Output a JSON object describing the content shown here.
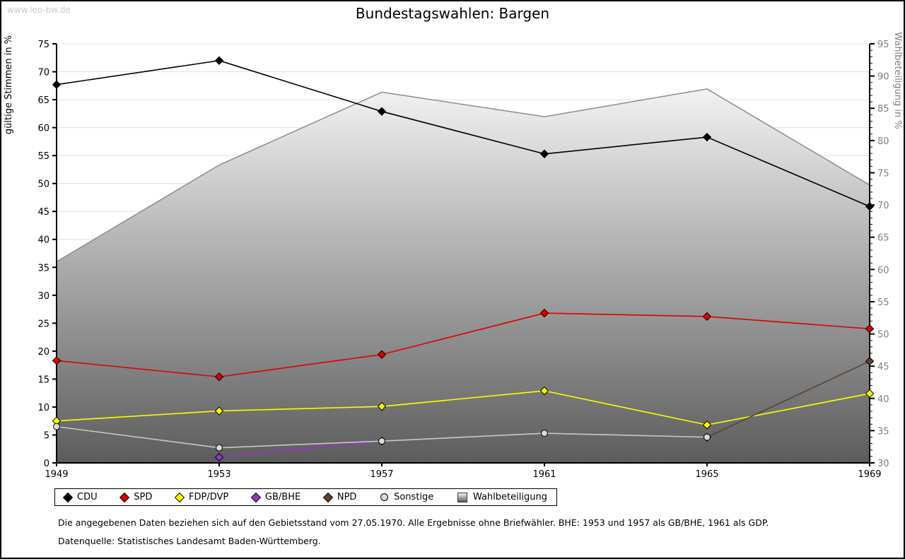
{
  "page": {
    "watermark": "www.leo-bw.de",
    "title": "Bundestagswahlen: Bargen",
    "footnote_line1": "Die angegebenen Daten beziehen sich auf den Gebietsstand vom 27.05.1970. Alle Ergebnisse ohne Briefwähler. BHE: 1953 und 1957 als GB/BHE, 1961 als GDP.",
    "footnote_line2": "Datenquelle: Statistisches Landesamt Baden-Württemberg."
  },
  "chart_data": {
    "type": "line",
    "title": "Bundestagswahlen: Bargen",
    "x": [
      1949,
      1953,
      1957,
      1961,
      1965,
      1969
    ],
    "left_axis": {
      "label": "gültige Stimmen in %",
      "min": 0,
      "max": 75,
      "tick_step": 5
    },
    "right_axis": {
      "label": "Wahlbeteiligung in %",
      "min": 30,
      "max": 95,
      "tick_step": 5
    },
    "grid": true,
    "legend_position": "bottom",
    "area_fill": {
      "top": "#f2f2f2",
      "bottom": "#5c5c5c"
    },
    "series": [
      {
        "name": "CDU",
        "axis": "left",
        "marker": "diamond",
        "color": "#000000",
        "values": [
          67.7,
          72.0,
          62.9,
          55.3,
          58.3,
          45.9
        ]
      },
      {
        "name": "SPD",
        "axis": "left",
        "marker": "diamond",
        "color": "#dd0000",
        "values": [
          18.3,
          15.4,
          19.4,
          26.8,
          26.2,
          24.0
        ]
      },
      {
        "name": "FDP/DVP",
        "axis": "left",
        "marker": "diamond",
        "color": "#ffff00",
        "values": [
          7.5,
          9.3,
          10.1,
          12.9,
          6.8,
          12.4
        ]
      },
      {
        "name": "GB/BHE",
        "axis": "left",
        "marker": "diamond",
        "color": "#9933cc",
        "values": [
          null,
          1.0,
          3.9,
          null,
          null,
          null
        ]
      },
      {
        "name": "NPD",
        "axis": "left",
        "marker": "diamond",
        "color": "#5c4433",
        "values": [
          null,
          null,
          null,
          null,
          4.6,
          18.2
        ]
      },
      {
        "name": "Sonstige",
        "axis": "left",
        "marker": "circle",
        "color": "#c8c8c8",
        "marker_fill": "#d9d9d9",
        "values": [
          6.5,
          2.7,
          3.9,
          5.3,
          4.6,
          null
        ]
      },
      {
        "name": "Wahlbeteiligung",
        "axis": "right",
        "type": "area",
        "color": "#8c8c8c",
        "values": [
          61.2,
          76.2,
          87.5,
          83.7,
          88.0,
          73.1
        ]
      }
    ]
  }
}
